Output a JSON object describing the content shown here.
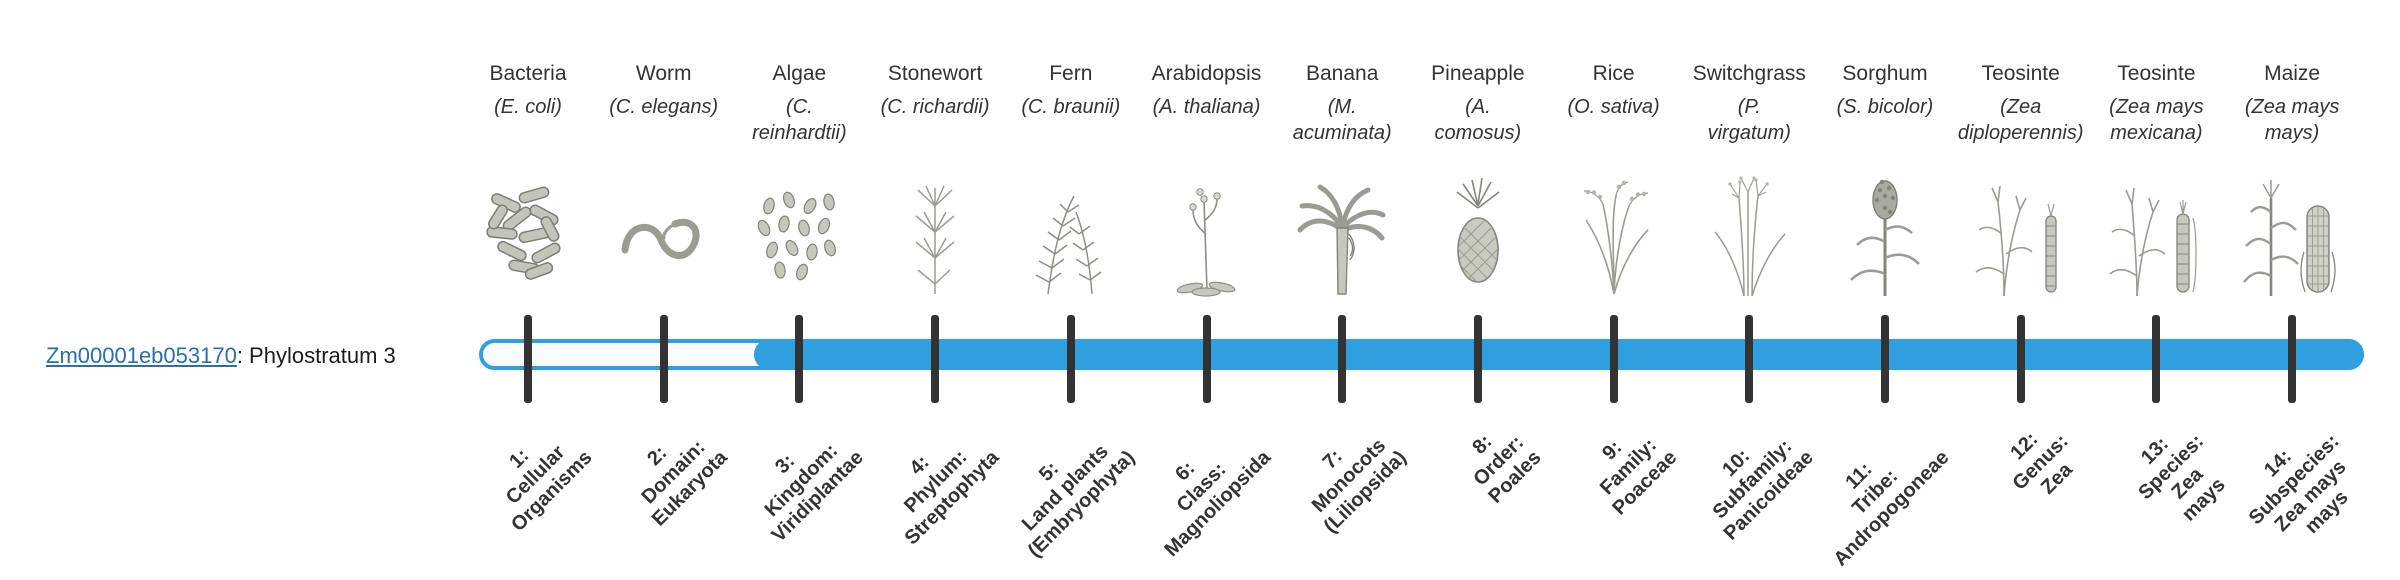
{
  "page": {
    "background": "#ffffff"
  },
  "gene": {
    "id": "Zm00001eb053170",
    "rest": ": Phylostratum 3",
    "assigned_phylostratum": 3
  },
  "colors": {
    "bar_fill": "#2f9fe0",
    "bar_outline": "#2f9fe0",
    "tick": "#333333",
    "link": "#2a6db0",
    "text": "#333333"
  },
  "timeline": {
    "filled_from_index": 3,
    "tick_count": 14
  },
  "taxa": [
    {
      "index": 1,
      "common": "Bacteria",
      "sci_lines": [
        "(E. coli)"
      ],
      "icon": "bacteria-icon",
      "stratum_lines": [
        "1:",
        "Cellular",
        "Organisms"
      ]
    },
    {
      "index": 2,
      "common": "Worm",
      "sci_lines": [
        "(C. elegans)"
      ],
      "icon": "worm-icon",
      "stratum_lines": [
        "2:",
        "Domain:",
        "Eukaryota"
      ]
    },
    {
      "index": 3,
      "common": "Algae",
      "sci_lines": [
        "(C.",
        "reinhardtii)"
      ],
      "icon": "algae-icon",
      "stratum_lines": [
        "3:",
        "Kingdom:",
        "Viridiplantae"
      ]
    },
    {
      "index": 4,
      "common": "Stonewort",
      "sci_lines": [
        "(C. richardii)"
      ],
      "icon": "stonewort-icon",
      "stratum_lines": [
        "4:",
        "Phylum:",
        "Streptophyta"
      ]
    },
    {
      "index": 5,
      "common": "Fern",
      "sci_lines": [
        "(C. braunii)"
      ],
      "icon": "fern-icon",
      "stratum_lines": [
        "5:",
        "Land plants",
        "(Embryophyta)"
      ]
    },
    {
      "index": 6,
      "common": "Arabidopsis",
      "sci_lines": [
        "(A. thaliana)"
      ],
      "icon": "arabidopsis-icon",
      "stratum_lines": [
        "6:",
        "Class:",
        "Magnoliopsida"
      ]
    },
    {
      "index": 7,
      "common": "Banana",
      "sci_lines": [
        "(M.",
        "acuminata)"
      ],
      "icon": "banana-icon",
      "stratum_lines": [
        "7:",
        "Monocots",
        "(Liliopsida)"
      ]
    },
    {
      "index": 8,
      "common": "Pineapple",
      "sci_lines": [
        "(A.",
        "comosus)"
      ],
      "icon": "pineapple-icon",
      "stratum_lines": [
        "8:",
        "Order:",
        "Poales"
      ]
    },
    {
      "index": 9,
      "common": "Rice",
      "sci_lines": [
        "(O. sativa)"
      ],
      "icon": "rice-icon",
      "stratum_lines": [
        "9:",
        "Family:",
        "Poaceae"
      ]
    },
    {
      "index": 10,
      "common": "Switchgrass",
      "sci_lines": [
        "(P.",
        "virgatum)"
      ],
      "icon": "switchgrass-icon",
      "stratum_lines": [
        "10:",
        "Subfamily:",
        "Panicoideae"
      ]
    },
    {
      "index": 11,
      "common": "Sorghum",
      "sci_lines": [
        "(S. bicolor)"
      ],
      "icon": "sorghum-icon",
      "stratum_lines": [
        "11:",
        "Tribe:",
        "Andropogoneae"
      ]
    },
    {
      "index": 12,
      "common": "Teosinte",
      "sci_lines": [
        "(Zea",
        "diploperennis)"
      ],
      "icon": "teosinte-diplo-icon",
      "stratum_lines": [
        "12:",
        "Genus:",
        "Zea"
      ]
    },
    {
      "index": 13,
      "common": "Teosinte",
      "sci_lines": [
        "(Zea mays",
        "mexicana)"
      ],
      "icon": "teosinte-mex-icon",
      "stratum_lines": [
        "13:",
        "Species:",
        "Zea",
        "mays"
      ]
    },
    {
      "index": 14,
      "common": "Maize",
      "sci_lines": [
        "(Zea mays",
        "mays)"
      ],
      "icon": "maize-icon",
      "stratum_lines": [
        "14:",
        "Subspecies:",
        "Zea mays",
        "mays"
      ]
    }
  ]
}
